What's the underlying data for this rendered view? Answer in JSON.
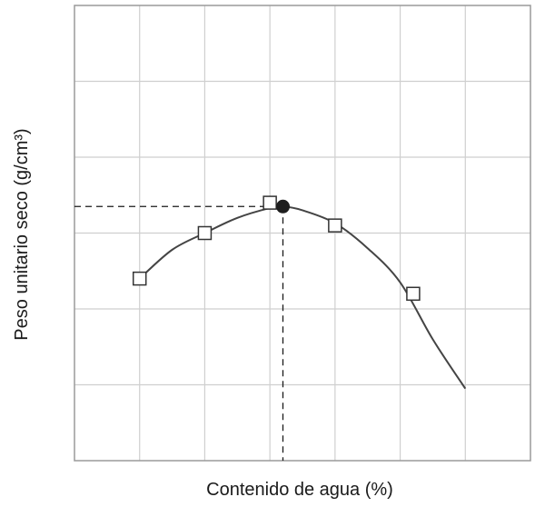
{
  "chart_data": {
    "type": "line",
    "title": "",
    "xlabel": "Contenido de agua (%)",
    "ylabel": "Peso unitario seco (g/cm³)",
    "xlim": [
      0,
      7
    ],
    "ylim": [
      0,
      6
    ],
    "grid": true,
    "tick_labels_shown": false,
    "series": [
      {
        "marker": "open-square",
        "points": [
          {
            "x": 1.0,
            "y": 2.4
          },
          {
            "x": 2.0,
            "y": 3.0
          },
          {
            "x": 3.0,
            "y": 3.4
          },
          {
            "x": 4.0,
            "y": 3.1
          },
          {
            "x": 5.2,
            "y": 2.2
          }
        ]
      }
    ],
    "curve": {
      "color": "#444444",
      "points": [
        {
          "x": 1.0,
          "y": 2.4
        },
        {
          "x": 1.5,
          "y": 2.78
        },
        {
          "x": 2.0,
          "y": 3.0
        },
        {
          "x": 2.5,
          "y": 3.2
        },
        {
          "x": 3.0,
          "y": 3.33
        },
        {
          "x": 3.2,
          "y": 3.35
        },
        {
          "x": 3.5,
          "y": 3.3
        },
        {
          "x": 4.0,
          "y": 3.13
        },
        {
          "x": 4.5,
          "y": 2.8
        },
        {
          "x": 5.0,
          "y": 2.35
        },
        {
          "x": 5.5,
          "y": 1.6
        },
        {
          "x": 6.0,
          "y": 0.95
        }
      ]
    },
    "optimum": {
      "x": 3.2,
      "y": 3.35,
      "marker": "filled-circle"
    },
    "reference_lines": "dashed from optimum to x-axis and to y-axis",
    "colors": {
      "curve": "#444444",
      "grid": "#cfcfcf",
      "frame": "#9a9a9a",
      "marker_fill": "#ffffff",
      "optimum": "#1e1e1e",
      "text": "#1a1a1a"
    }
  }
}
